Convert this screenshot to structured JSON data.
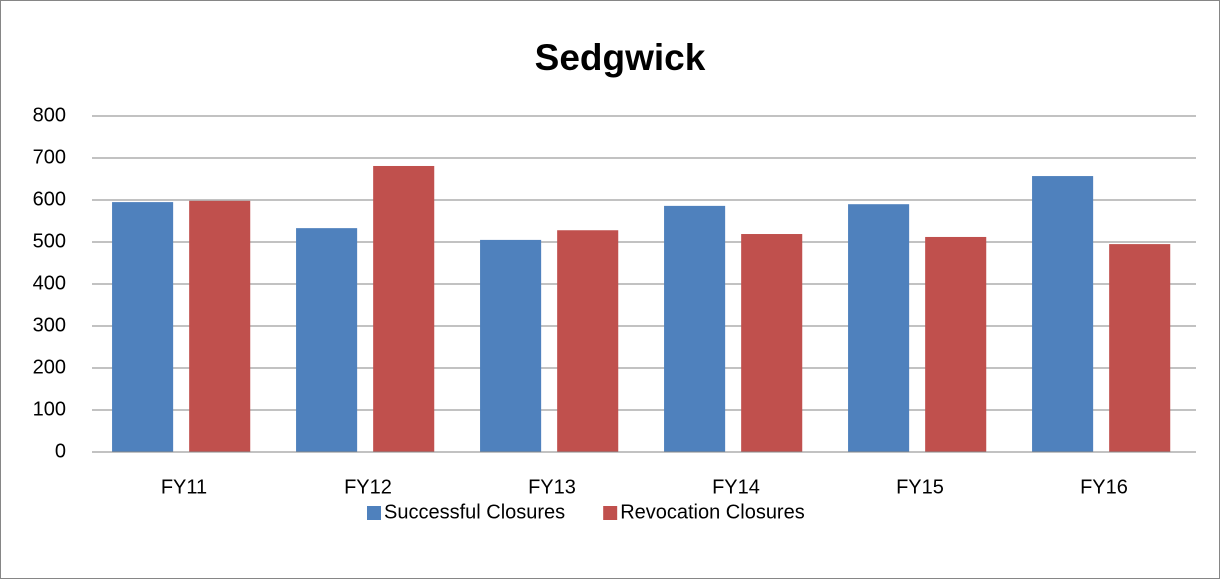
{
  "chart_data": {
    "type": "bar",
    "title": "Sedgwick",
    "categories": [
      "FY11",
      "FY12",
      "FY13",
      "FY14",
      "FY15",
      "FY16"
    ],
    "series": [
      {
        "name": "Successful Closures",
        "color": "#4f81bd",
        "values": [
          595,
          533,
          505,
          586,
          590,
          657
        ]
      },
      {
        "name": "Revocation Closures",
        "color": "#c0504d",
        "values": [
          598,
          681,
          528,
          519,
          512,
          495
        ]
      }
    ],
    "ylim": [
      0,
      800
    ],
    "yticks": [
      0,
      100,
      200,
      300,
      400,
      500,
      600,
      700,
      800
    ],
    "grid": true,
    "legend": "bottom"
  }
}
